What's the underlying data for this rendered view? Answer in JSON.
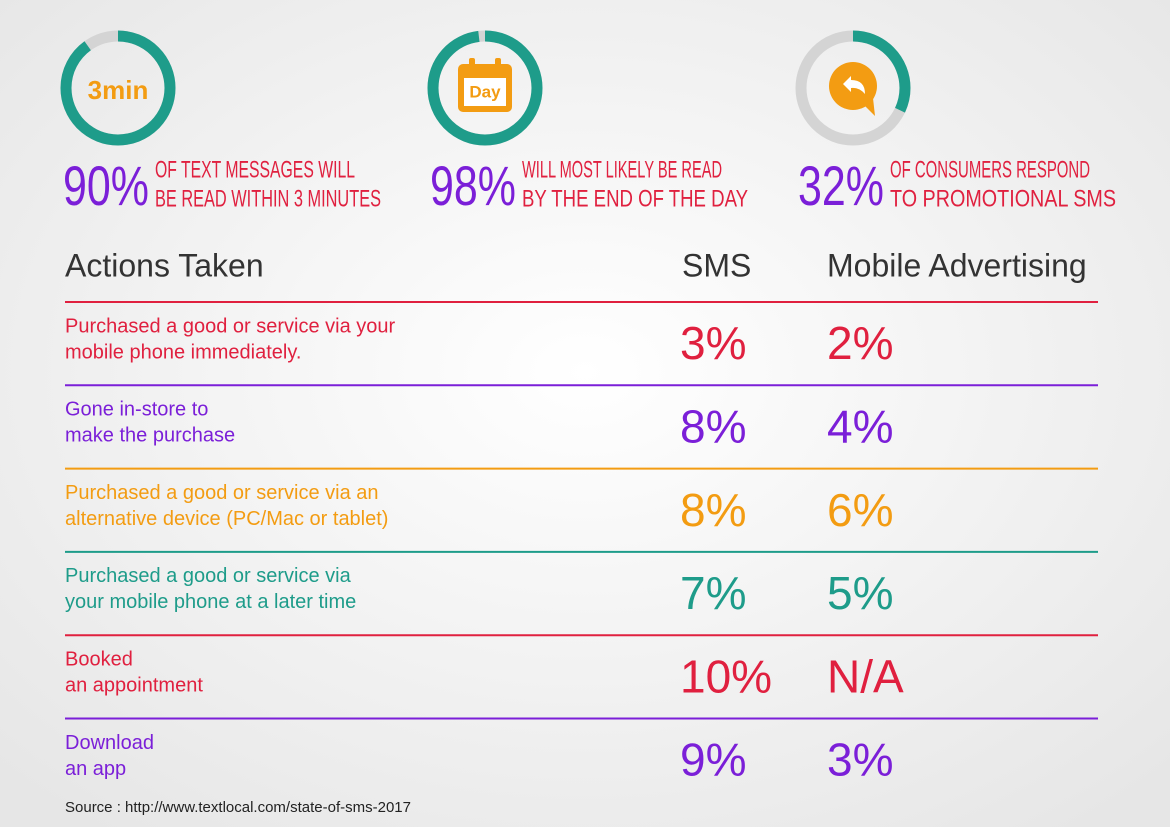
{
  "stats": [
    {
      "value": 90,
      "value_label": "90%",
      "icon_text": "3min",
      "text": [
        "OF TEXT MESSAGES WILL",
        "BE READ WITHIN 3 MINUTES"
      ]
    },
    {
      "value": 98,
      "value_label": "98%",
      "icon_text": "Day",
      "text": [
        "WILL MOST LIKELY BE READ",
        "BY THE END OF THE DAY"
      ]
    },
    {
      "value": 32,
      "value_label": "32%",
      "icon_text": null,
      "text": [
        "OF CONSUMERS RESPOND",
        "TO PROMOTIONAL SMS"
      ]
    }
  ],
  "table": {
    "headers": [
      "Actions Taken",
      "SMS",
      "Mobile Advertising"
    ],
    "rows": [
      {
        "color": "#e0203f",
        "action": [
          "Purchased a good or service via your",
          "mobile phone immediately."
        ],
        "sms": "3%",
        "mobile": "2%"
      },
      {
        "color": "#7b1fd8",
        "action": [
          "Gone in-store to",
          "make the purchase"
        ],
        "sms": "8%",
        "mobile": "4%"
      },
      {
        "color": "#f39c12",
        "action": [
          "Purchased a good or service via an",
          "alternative device (PC/Mac or tablet)"
        ],
        "sms": "8%",
        "mobile": "6%"
      },
      {
        "color": "#1e9c8a",
        "action": [
          "Purchased a good or service via",
          "your mobile phone at a later time"
        ],
        "sms": "7%",
        "mobile": "5%"
      },
      {
        "color": "#e0203f",
        "action": [
          "Booked",
          "an appointment"
        ],
        "sms": "10%",
        "mobile": "N/A"
      },
      {
        "color": "#7b1fd8",
        "action": [
          "Download",
          "an app"
        ],
        "sms": "9%",
        "mobile": "3%"
      }
    ]
  },
  "source": "Source : http://www.textlocal.com/state-of-sms-2017"
}
